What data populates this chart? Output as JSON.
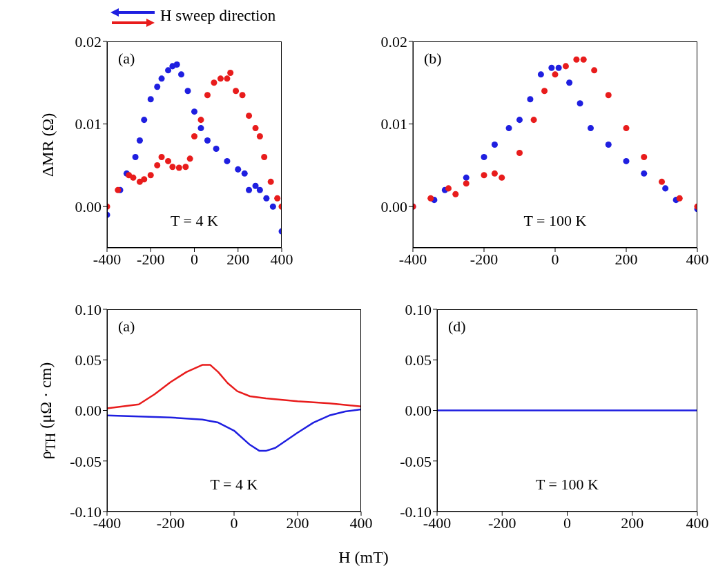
{
  "chart_data": [
    {
      "type": "scatter",
      "legend_title": "H sweep direction",
      "ylabel": "ΔMR (Ω)",
      "annotations": [
        "(a)",
        "T = 4 K"
      ],
      "marker": "circle",
      "xlim": [
        -400,
        400
      ],
      "xticks": [
        -400,
        -200,
        0,
        200,
        400
      ],
      "ylim": [
        -0.005,
        0.02
      ],
      "yticks": [
        {
          "value": 0,
          "label": "0.00"
        },
        {
          "value": 0.01,
          "label": "0.01"
        },
        {
          "value": 0.02,
          "label": "0.02"
        }
      ],
      "series": [
        {
          "color": "#1f1fe0",
          "x": [
            -400,
            -340,
            -310,
            -270,
            -250,
            -230,
            -200,
            -170,
            -150,
            -120,
            -100,
            -80,
            -60,
            -30,
            0,
            30,
            60,
            100,
            150,
            200,
            230,
            250,
            280,
            300,
            330,
            360,
            400
          ],
          "values": [
            -0.001,
            0.002,
            0.004,
            0.006,
            0.008,
            0.0105,
            0.013,
            0.0145,
            0.0155,
            0.0165,
            0.017,
            0.0172,
            0.016,
            0.014,
            0.0115,
            0.0095,
            0.008,
            0.007,
            0.0055,
            0.0045,
            0.004,
            0.002,
            0.0025,
            0.002,
            0.001,
            0.0,
            -0.003
          ]
        },
        {
          "color": "#e81c1c",
          "x": [
            -400,
            -350,
            -300,
            -280,
            -250,
            -230,
            -200,
            -170,
            -150,
            -120,
            -100,
            -70,
            -40,
            -20,
            0,
            30,
            60,
            90,
            120,
            150,
            165,
            190,
            220,
            250,
            280,
            300,
            320,
            350,
            380,
            400
          ],
          "values": [
            0,
            0.002,
            0.0038,
            0.0035,
            0.003,
            0.0033,
            0.0038,
            0.005,
            0.006,
            0.0055,
            0.0048,
            0.0047,
            0.0048,
            0.0058,
            0.0085,
            0.0105,
            0.0135,
            0.015,
            0.0155,
            0.0155,
            0.0162,
            0.014,
            0.0135,
            0.011,
            0.0095,
            0.0085,
            0.006,
            0.003,
            0.001,
            0
          ]
        }
      ]
    },
    {
      "type": "scatter",
      "annotations": [
        "(b)",
        "T = 100 K"
      ],
      "marker": "circle",
      "xlim": [
        -400,
        400
      ],
      "xticks": [
        -400,
        -200,
        0,
        200,
        400
      ],
      "ylim": [
        -0.005,
        0.02
      ],
      "yticks": [
        {
          "value": 0,
          "label": "0.00"
        },
        {
          "value": 0.01,
          "label": "0.01"
        },
        {
          "value": 0.02,
          "label": "0.02"
        }
      ],
      "series": [
        {
          "color": "#1f1fe0",
          "x": [
            -400,
            -340,
            -310,
            -250,
            -200,
            -170,
            -130,
            -100,
            -70,
            -40,
            -10,
            10,
            40,
            70,
            100,
            150,
            200,
            250,
            310,
            340,
            400
          ],
          "values": [
            0,
            0.0008,
            0.002,
            0.0035,
            0.006,
            0.0075,
            0.0095,
            0.0105,
            0.013,
            0.016,
            0.0168,
            0.0168,
            0.015,
            0.0125,
            0.0095,
            0.0075,
            0.0055,
            0.004,
            0.0022,
            0.0008,
            -0.0003
          ]
        },
        {
          "color": "#e81c1c",
          "x": [
            -400,
            -350,
            -300,
            -280,
            -250,
            -200,
            -170,
            -150,
            -100,
            -60,
            -30,
            0,
            30,
            60,
            80,
            110,
            150,
            200,
            250,
            300,
            350,
            400
          ],
          "values": [
            0,
            0.001,
            0.0022,
            0.0015,
            0.0028,
            0.0038,
            0.004,
            0.0035,
            0.0065,
            0.0105,
            0.014,
            0.016,
            0.017,
            0.0178,
            0.0178,
            0.0165,
            0.0135,
            0.0095,
            0.006,
            0.003,
            0.001,
            0
          ]
        }
      ]
    },
    {
      "type": "line",
      "ylabel": "ρ$_{TH}$ (μΩ · cm)",
      "xlabel": "H (mT)",
      "annotations": [
        "(a)",
        "T = 4 K"
      ],
      "marker": "none",
      "xlim": [
        -400,
        400
      ],
      "xticks": [
        -400,
        -200,
        0,
        200,
        400
      ],
      "ylim": [
        -0.1,
        0.1
      ],
      "yticks": [
        {
          "value": -0.1,
          "label": "-0.10"
        },
        {
          "value": -0.05,
          "label": "-0.05"
        },
        {
          "value": 0,
          "label": "0.00"
        },
        {
          "value": 0.05,
          "label": "0.05"
        },
        {
          "value": 0.1,
          "label": "0.10"
        }
      ],
      "series": [
        {
          "color": "#e81c1c",
          "x": [
            -400,
            -300,
            -250,
            -200,
            -150,
            -100,
            -75,
            -50,
            -20,
            10,
            50,
            100,
            200,
            300,
            400
          ],
          "values": [
            0.002,
            0.006,
            0.016,
            0.028,
            0.038,
            0.045,
            0.045,
            0.038,
            0.027,
            0.019,
            0.014,
            0.012,
            0.009,
            0.007,
            0.004
          ]
        },
        {
          "color": "#1f1fe0",
          "x": [
            -400,
            -300,
            -200,
            -100,
            -50,
            0,
            50,
            80,
            100,
            130,
            200,
            250,
            300,
            350,
            400
          ],
          "values": [
            -0.005,
            -0.006,
            -0.007,
            -0.009,
            -0.012,
            -0.02,
            -0.034,
            -0.04,
            -0.04,
            -0.037,
            -0.022,
            -0.012,
            -0.005,
            -0.001,
            0.001
          ]
        }
      ]
    },
    {
      "type": "line",
      "annotations": [
        "(d)",
        "T = 100 K"
      ],
      "marker": "none",
      "xlim": [
        -400,
        400
      ],
      "xticks": [
        -400,
        -200,
        0,
        200,
        400
      ],
      "ylim": [
        -0.1,
        0.1
      ],
      "yticks": [
        {
          "value": -0.1,
          "label": "-0.10"
        },
        {
          "value": -0.05,
          "label": "-0.05"
        },
        {
          "value": 0,
          "label": "0.00"
        },
        {
          "value": 0.05,
          "label": "0.05"
        },
        {
          "value": 0.1,
          "label": "0.10"
        }
      ],
      "series": [
        {
          "color": "#1f1fe0",
          "x": [
            -400,
            400
          ],
          "values": [
            0,
            0
          ]
        }
      ]
    }
  ]
}
